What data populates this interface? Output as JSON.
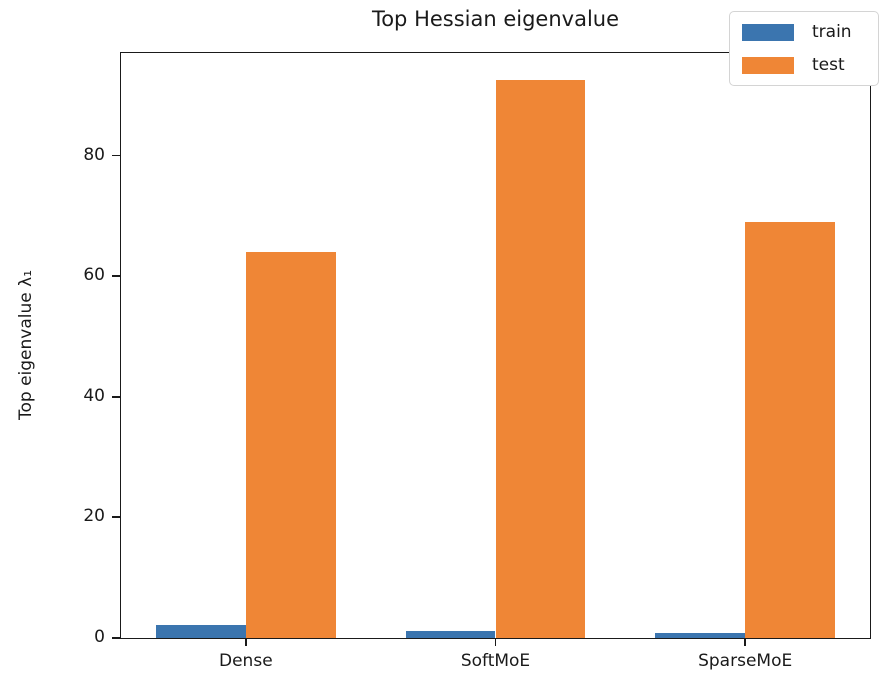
{
  "chart_data": {
    "type": "bar",
    "title": "Top Hessian eigenvalue",
    "ylabel": "Top eigenvalue λ₁",
    "xlabel": "",
    "categories": [
      "Dense",
      "SoftMoE",
      "SparseMoE"
    ],
    "series": [
      {
        "name": "train",
        "color": "#3b75af",
        "values": [
          2.2,
          1.2,
          0.8
        ]
      },
      {
        "name": "test",
        "color": "#ef8636",
        "values": [
          64,
          92.5,
          69
        ]
      }
    ],
    "yticks": [
      0,
      20,
      40,
      60,
      80
    ],
    "ylim": [
      0,
      97
    ],
    "bar_width": 0.36,
    "grid": false,
    "legend_position": "upper right"
  },
  "colors": {
    "train_bar": "#3b75af",
    "test_bar": "#ef8636",
    "axis": "#1a1a1a",
    "text": "#1a1a1a",
    "legend_border": "#d4d4d4",
    "background": "#ffffff"
  }
}
